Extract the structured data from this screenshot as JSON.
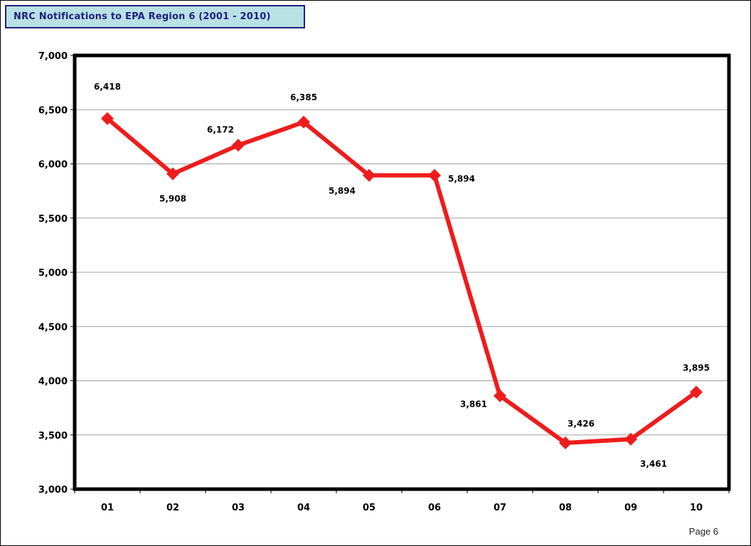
{
  "page": {
    "title": "NRC Notifications to EPA Region 6 (2001 - 2010)",
    "footer": "Page 6"
  },
  "colors": {
    "title_bg": "#b9e0e3",
    "title_border": "#1f1f80",
    "line": "#ee1c1c",
    "grid": "#a0a0a0"
  },
  "chart_data": {
    "type": "line",
    "title": "NRC Notifications to EPA Region 6 (2001 - 2010)",
    "categories": [
      "01",
      "02",
      "03",
      "04",
      "05",
      "06",
      "07",
      "08",
      "09",
      "10"
    ],
    "series": [
      {
        "values": [
          6418,
          5908,
          6172,
          6385,
          5894,
          5894,
          3861,
          3426,
          3461,
          3895
        ]
      }
    ],
    "data_labels": [
      "6,418",
      "5,908",
      "6,172",
      "6,385",
      "5,894",
      "5,894",
      "3,861",
      "3,426",
      "3,461",
      "3,895"
    ],
    "ylim": [
      3000,
      7000
    ],
    "yticks": [
      3000,
      3500,
      4000,
      4500,
      5000,
      5500,
      6000,
      6500,
      7000
    ],
    "ytick_labels": [
      "3,000",
      "3,500",
      "4,000",
      "4,500",
      "5,000",
      "5,500",
      "6,000",
      "6,500",
      "7,000"
    ],
    "grid": true,
    "legend": "none",
    "xlabel": "",
    "ylabel": ""
  }
}
